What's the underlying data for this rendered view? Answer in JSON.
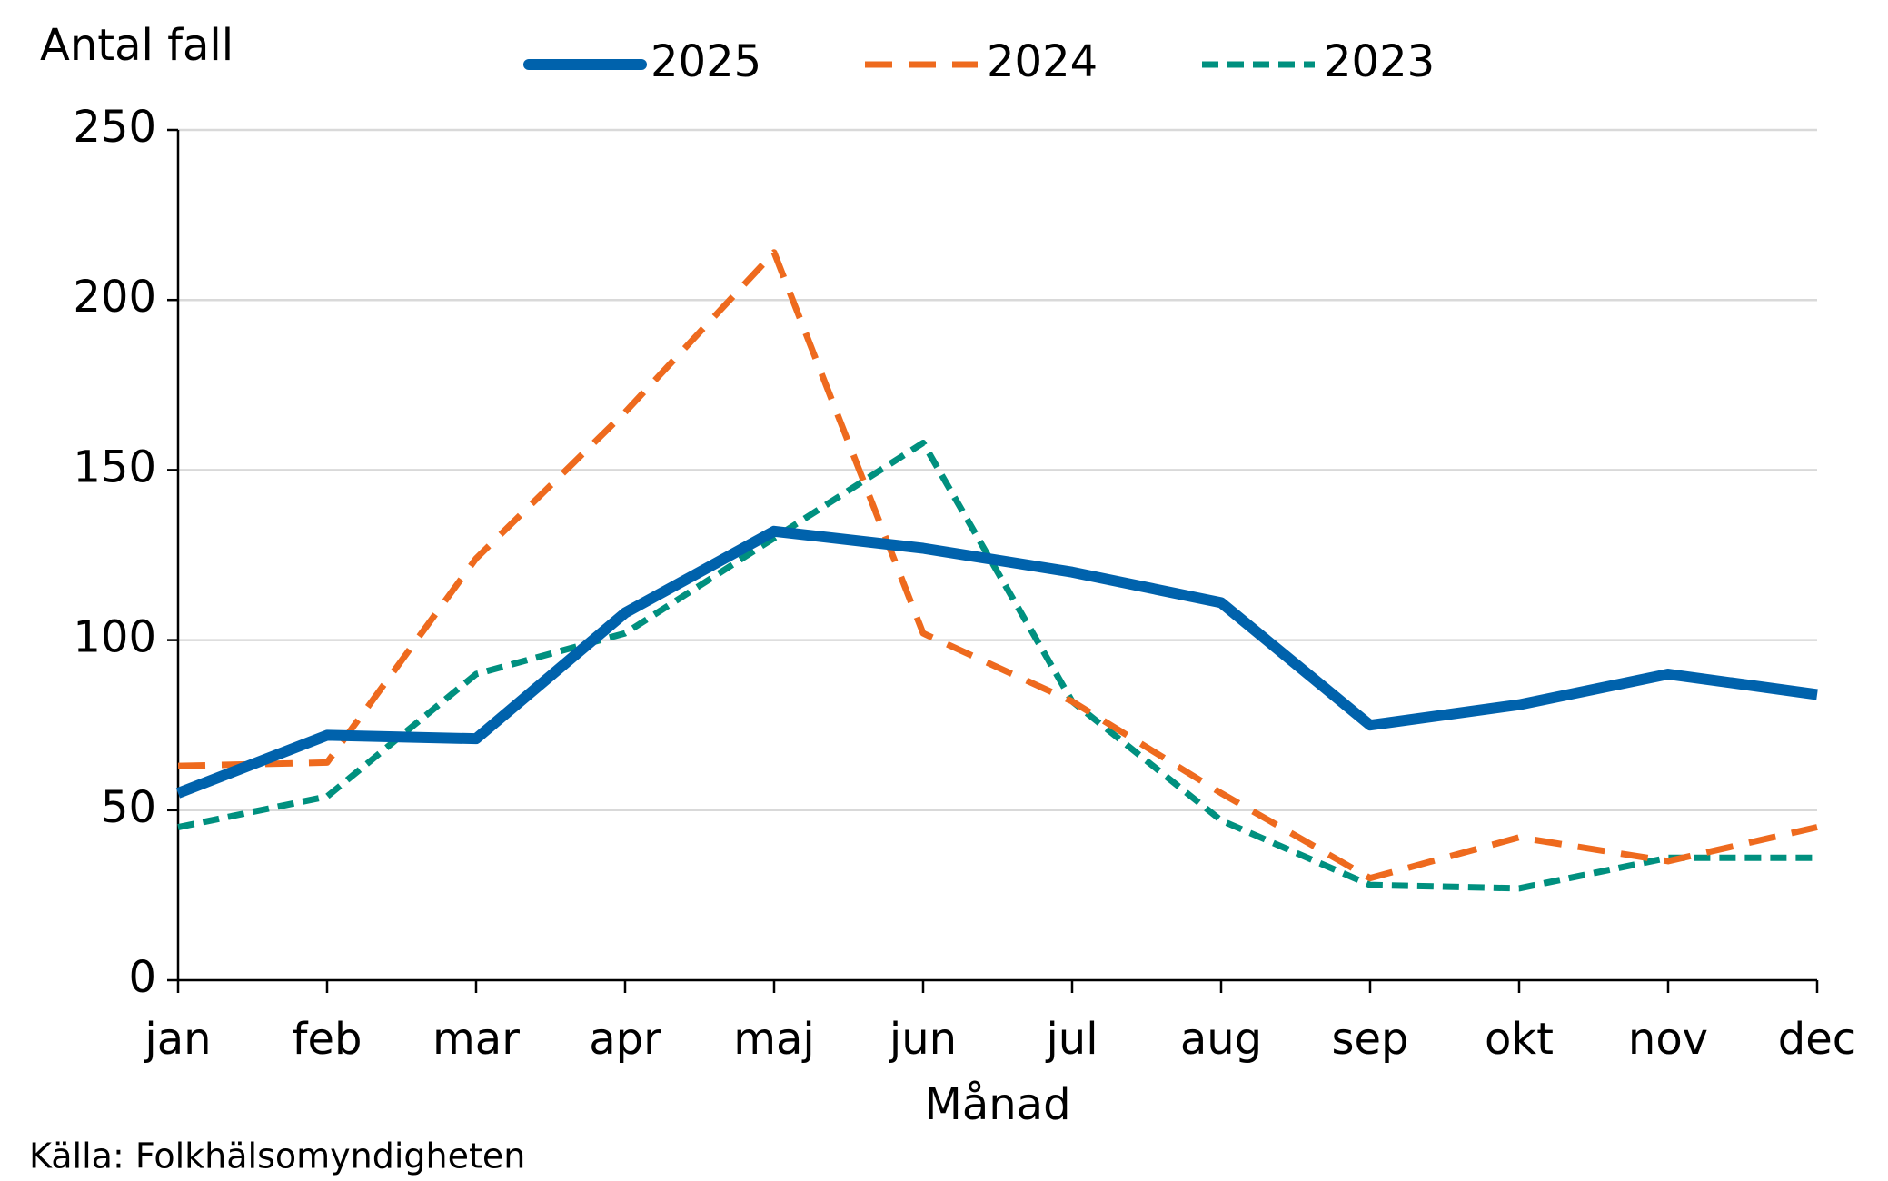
{
  "chart_data": {
    "type": "line",
    "y_label": "Antal fall",
    "x_label": "Månad",
    "source": "Källa: Folkhälsomyndigheten",
    "categories": [
      "jan",
      "feb",
      "mar",
      "apr",
      "maj",
      "jun",
      "jul",
      "aug",
      "sep",
      "okt",
      "nov",
      "dec"
    ],
    "series": [
      {
        "name": "2025",
        "color": "#0062ac",
        "dash": "solid",
        "values": [
          55,
          72,
          71,
          108,
          132,
          127,
          120,
          111,
          75,
          81,
          90,
          84
        ]
      },
      {
        "name": "2024",
        "color": "#ee6a1e",
        "dash": "long",
        "values": [
          63,
          64,
          124,
          167,
          214,
          102,
          82,
          55,
          30,
          42,
          35,
          45
        ]
      },
      {
        "name": "2023",
        "color": "#00907f",
        "dash": "short",
        "values": [
          45,
          54,
          90,
          102,
          130,
          158,
          82,
          47,
          28,
          27,
          36,
          36
        ]
      }
    ],
    "ylim": [
      0,
      250
    ],
    "yticks": [
      0,
      50,
      100,
      150,
      200,
      250
    ],
    "grid": true,
    "legend": "top"
  }
}
